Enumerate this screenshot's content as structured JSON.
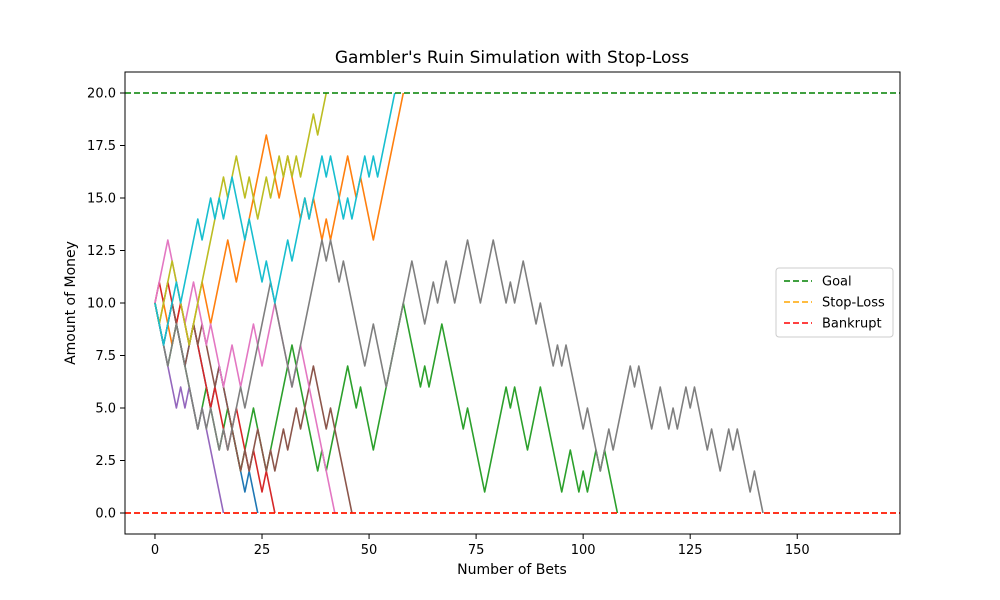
{
  "chart_data": {
    "type": "line",
    "title": "Gambler's Ruin Simulation with Stop-Loss",
    "xlabel": "Number of Bets",
    "ylabel": "Amount of Money",
    "xlim": [
      -7,
      174
    ],
    "ylim": [
      -1,
      21
    ],
    "xticks": [
      0,
      25,
      50,
      75,
      100,
      125,
      150
    ],
    "yticks": [
      0.0,
      2.5,
      5.0,
      7.5,
      10.0,
      12.5,
      15.0,
      17.5,
      20.0
    ],
    "ytick_labels": [
      "0.0",
      "2.5",
      "5.0",
      "7.5",
      "10.0",
      "12.5",
      "15.0",
      "17.5",
      "20.0"
    ],
    "reference_lines": [
      {
        "name": "Goal",
        "y": 20,
        "color": "#008000",
        "style": "dashed"
      },
      {
        "name": "Stop-Loss",
        "y": 0,
        "color": "#ffa500",
        "style": "dashed"
      },
      {
        "name": "Bankrupt",
        "y": 0,
        "color": "#ff0000",
        "style": "dashed"
      }
    ],
    "legend": {
      "position": "center-right",
      "entries": [
        "Goal",
        "Stop-Loss",
        "Bankrupt"
      ]
    },
    "grid": false,
    "series": [
      {
        "color": "#1f77b4",
        "y": [
          10,
          9,
          8,
          9,
          10,
          9,
          8,
          7,
          8,
          9,
          8,
          7,
          6,
          5,
          6,
          7,
          6,
          5,
          4,
          3,
          2,
          1,
          2,
          1,
          0
        ]
      },
      {
        "color": "#ff7f0e",
        "y": [
          10,
          9,
          10,
          9,
          8,
          9,
          10,
          9,
          8,
          9,
          10,
          11,
          10,
          9,
          10,
          11,
          12,
          13,
          12,
          11,
          12,
          13,
          14,
          15,
          16,
          17,
          18,
          17,
          16,
          15,
          16,
          17,
          16,
          15,
          14,
          15,
          14,
          15,
          14,
          13,
          14,
          13,
          14,
          15,
          16,
          17,
          16,
          15,
          16,
          15,
          14,
          13,
          14,
          15,
          16,
          17,
          18,
          19,
          20
        ]
      },
      {
        "color": "#2ca02c",
        "y": [
          10,
          9,
          8,
          7,
          8,
          9,
          8,
          7,
          6,
          5,
          4,
          5,
          6,
          5,
          4,
          3,
          4,
          5,
          4,
          3,
          2,
          3,
          4,
          5,
          4,
          3,
          2,
          3,
          4,
          5,
          6,
          7,
          8,
          7,
          6,
          5,
          4,
          3,
          2,
          3,
          2,
          3,
          4,
          5,
          6,
          7,
          6,
          5,
          6,
          5,
          4,
          3,
          4,
          5,
          6,
          7,
          8,
          9,
          10,
          9,
          8,
          7,
          6,
          7,
          6,
          7,
          8,
          9,
          8,
          7,
          6,
          5,
          4,
          5,
          4,
          3,
          2,
          1,
          2,
          3,
          4,
          5,
          6,
          5,
          6,
          5,
          4,
          3,
          4,
          5,
          6,
          5,
          4,
          3,
          2,
          1,
          2,
          3,
          2,
          1,
          2,
          1,
          2,
          3,
          2,
          3,
          2,
          1,
          0
        ]
      },
      {
        "color": "#d62728",
        "y": [
          10,
          11,
          10,
          11,
          10,
          9,
          10,
          9,
          8,
          9,
          8,
          7,
          6,
          5,
          6,
          5,
          4,
          3,
          4,
          5,
          4,
          3,
          2,
          3,
          2,
          1,
          2,
          1,
          0
        ]
      },
      {
        "color": "#9467bd",
        "y": [
          10,
          9,
          8,
          7,
          6,
          5,
          6,
          5,
          6,
          5,
          4,
          5,
          4,
          3,
          2,
          1,
          0
        ]
      },
      {
        "color": "#8c564b",
        "y": [
          10,
          9,
          8,
          9,
          10,
          9,
          8,
          7,
          8,
          9,
          8,
          9,
          8,
          7,
          6,
          7,
          6,
          5,
          4,
          3,
          2,
          3,
          2,
          3,
          4,
          3,
          2,
          3,
          2,
          3,
          4,
          3,
          4,
          5,
          4,
          5,
          6,
          7,
          6,
          5,
          4,
          5,
          4,
          3,
          2,
          1,
          0
        ]
      },
      {
        "color": "#e377c2",
        "y": [
          10,
          11,
          12,
          13,
          12,
          11,
          10,
          9,
          10,
          11,
          10,
          9,
          8,
          9,
          8,
          7,
          6,
          7,
          8,
          7,
          6,
          7,
          8,
          9,
          8,
          7,
          8,
          9,
          10,
          9,
          8,
          7,
          6,
          7,
          8,
          7,
          6,
          5,
          4,
          3,
          2,
          1,
          0
        ]
      },
      {
        "color": "#7f7f7f",
        "y": [
          10,
          9,
          8,
          7,
          8,
          9,
          8,
          7,
          6,
          5,
          4,
          5,
          4,
          5,
          4,
          3,
          4,
          3,
          4,
          5,
          6,
          5,
          6,
          7,
          8,
          9,
          10,
          11,
          10,
          9,
          8,
          7,
          6,
          7,
          8,
          9,
          10,
          11,
          12,
          13,
          12,
          13,
          12,
          11,
          12,
          11,
          10,
          9,
          8,
          7,
          8,
          9,
          8,
          7,
          6,
          7,
          8,
          9,
          10,
          11,
          12,
          11,
          10,
          9,
          10,
          11,
          10,
          11,
          12,
          11,
          10,
          11,
          12,
          13,
          12,
          11,
          10,
          11,
          12,
          13,
          12,
          11,
          10,
          11,
          10,
          11,
          12,
          11,
          10,
          9,
          10,
          9,
          8,
          7,
          8,
          7,
          8,
          7,
          6,
          5,
          4,
          5,
          4,
          3,
          2,
          3,
          4,
          3,
          4,
          5,
          6,
          7,
          6,
          7,
          6,
          5,
          4,
          5,
          6,
          5,
          4,
          5,
          4,
          5,
          6,
          5,
          6,
          5,
          4,
          3,
          4,
          3,
          2,
          3,
          4,
          3,
          4,
          3,
          2,
          1,
          2,
          1,
          0
        ]
      },
      {
        "color": "#bcbd22",
        "y": [
          10,
          9,
          10,
          11,
          12,
          11,
          10,
          9,
          8,
          9,
          10,
          11,
          12,
          13,
          14,
          15,
          16,
          15,
          16,
          17,
          16,
          15,
          16,
          15,
          14,
          15,
          16,
          15,
          16,
          17,
          16,
          17,
          16,
          17,
          16,
          17,
          18,
          19,
          18,
          19,
          20
        ]
      },
      {
        "color": "#17becf",
        "y": [
          10,
          9,
          8,
          9,
          10,
          11,
          10,
          11,
          12,
          13,
          14,
          13,
          14,
          15,
          14,
          15,
          14,
          15,
          16,
          15,
          14,
          13,
          14,
          13,
          12,
          11,
          12,
          11,
          10,
          11,
          12,
          13,
          12,
          13,
          14,
          15,
          14,
          15,
          16,
          17,
          16,
          17,
          16,
          15,
          14,
          15,
          14,
          15,
          16,
          17,
          16,
          17,
          16,
          17,
          18,
          19,
          20
        ]
      }
    ]
  }
}
